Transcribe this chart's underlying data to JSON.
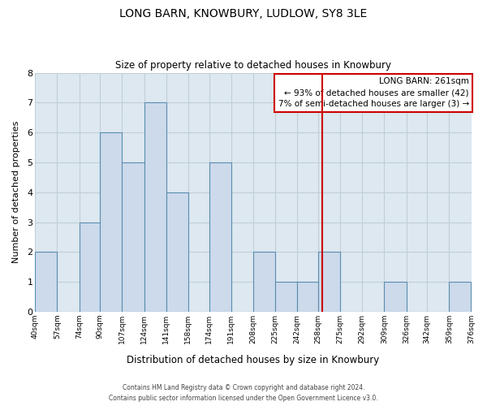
{
  "title": "LONG BARN, KNOWBURY, LUDLOW, SY8 3LE",
  "subtitle": "Size of property relative to detached houses in Knowbury",
  "xlabel": "Distribution of detached houses by size in Knowbury",
  "ylabel": "Number of detached properties",
  "bar_edges": [
    40,
    57,
    74,
    90,
    107,
    124,
    141,
    158,
    174,
    191,
    208,
    225,
    242,
    258,
    275,
    292,
    309,
    326,
    342,
    359,
    376
  ],
  "bar_heights": [
    2,
    0,
    3,
    6,
    5,
    7,
    4,
    0,
    5,
    0,
    2,
    1,
    1,
    2,
    0,
    0,
    1,
    0,
    0,
    1
  ],
  "bar_color": "#ccdaeb",
  "bar_edge_color": "#5b8db0",
  "vline_x": 261,
  "vline_color": "#cc0000",
  "annotation_title": "LONG BARN: 261sqm",
  "annotation_line1": "← 93% of detached houses are smaller (42)",
  "annotation_line2": "7% of semi-detached houses are larger (3) →",
  "annotation_box_color": "#ffffff",
  "annotation_box_edge": "#cc0000",
  "ylim": [
    0,
    8
  ],
  "yticks": [
    0,
    1,
    2,
    3,
    4,
    5,
    6,
    7,
    8
  ],
  "tick_labels": [
    "40sqm",
    "57sqm",
    "74sqm",
    "90sqm",
    "107sqm",
    "124sqm",
    "141sqm",
    "158sqm",
    "174sqm",
    "191sqm",
    "208sqm",
    "225sqm",
    "242sqm",
    "258sqm",
    "275sqm",
    "292sqm",
    "309sqm",
    "326sqm",
    "342sqm",
    "359sqm",
    "376sqm"
  ],
  "footer1": "Contains HM Land Registry data © Crown copyright and database right 2024.",
  "footer2": "Contains public sector information licensed under the Open Government Licence v3.0.",
  "bg_color": "#ffffff",
  "plot_bg_color": "#dde8f0",
  "grid_color": "#c0cfd8"
}
